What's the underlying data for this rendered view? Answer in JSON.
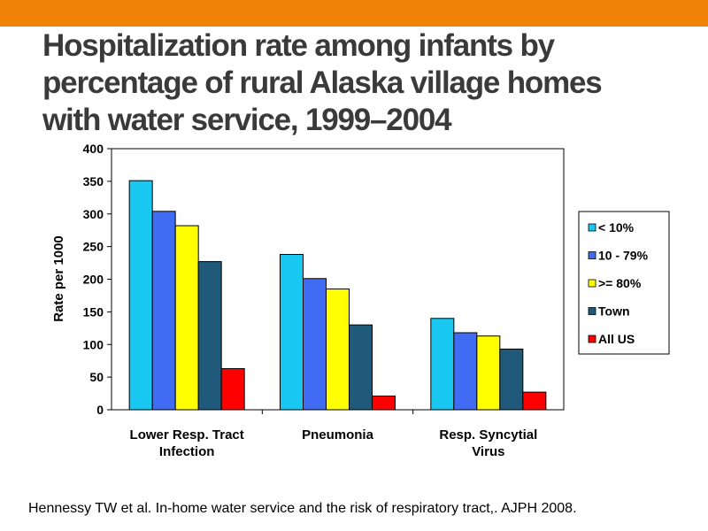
{
  "theme": {
    "band_color": "#f08208",
    "title_color": "#3a3a3a"
  },
  "slide": {
    "title_lines": [
      "Hospitalization rate among infants by",
      "percentage of rural Alaska village homes",
      "with water service, 1999–2004"
    ],
    "citation": "Hennessy TW et al. In-home water service and the risk of respiratory tract,. AJPH 2008."
  },
  "chart_data": {
    "type": "bar",
    "title": "",
    "xlabel": "",
    "ylabel": "Rate per 1000",
    "ylim": [
      0,
      400
    ],
    "yticks": [
      "0",
      "50",
      "100",
      "150",
      "200",
      "250",
      "300",
      "350",
      "400"
    ],
    "ytick_values": [
      0,
      50,
      100,
      150,
      200,
      250,
      300,
      350,
      400
    ],
    "grid": false,
    "legend_position": "right",
    "categories": [
      [
        "Lower Resp. Tract",
        "Infection"
      ],
      [
        "Pneumonia"
      ],
      [
        "Resp. Syncytial",
        "Virus"
      ]
    ],
    "series": [
      {
        "name": "< 10%",
        "color": "#19c8f0",
        "values": [
          351,
          238,
          140
        ]
      },
      {
        "name": "10 - 79%",
        "color": "#3f6cf2",
        "values": [
          304,
          201,
          118
        ]
      },
      {
        "name": ">= 80%",
        "color": "#ffff00",
        "values": [
          282,
          185,
          113
        ]
      },
      {
        "name": "Town",
        "color": "#1f5a7a",
        "values": [
          227,
          130,
          93
        ]
      },
      {
        "name": "All US",
        "color": "#ff0000",
        "values": [
          63,
          21,
          27
        ]
      }
    ]
  }
}
